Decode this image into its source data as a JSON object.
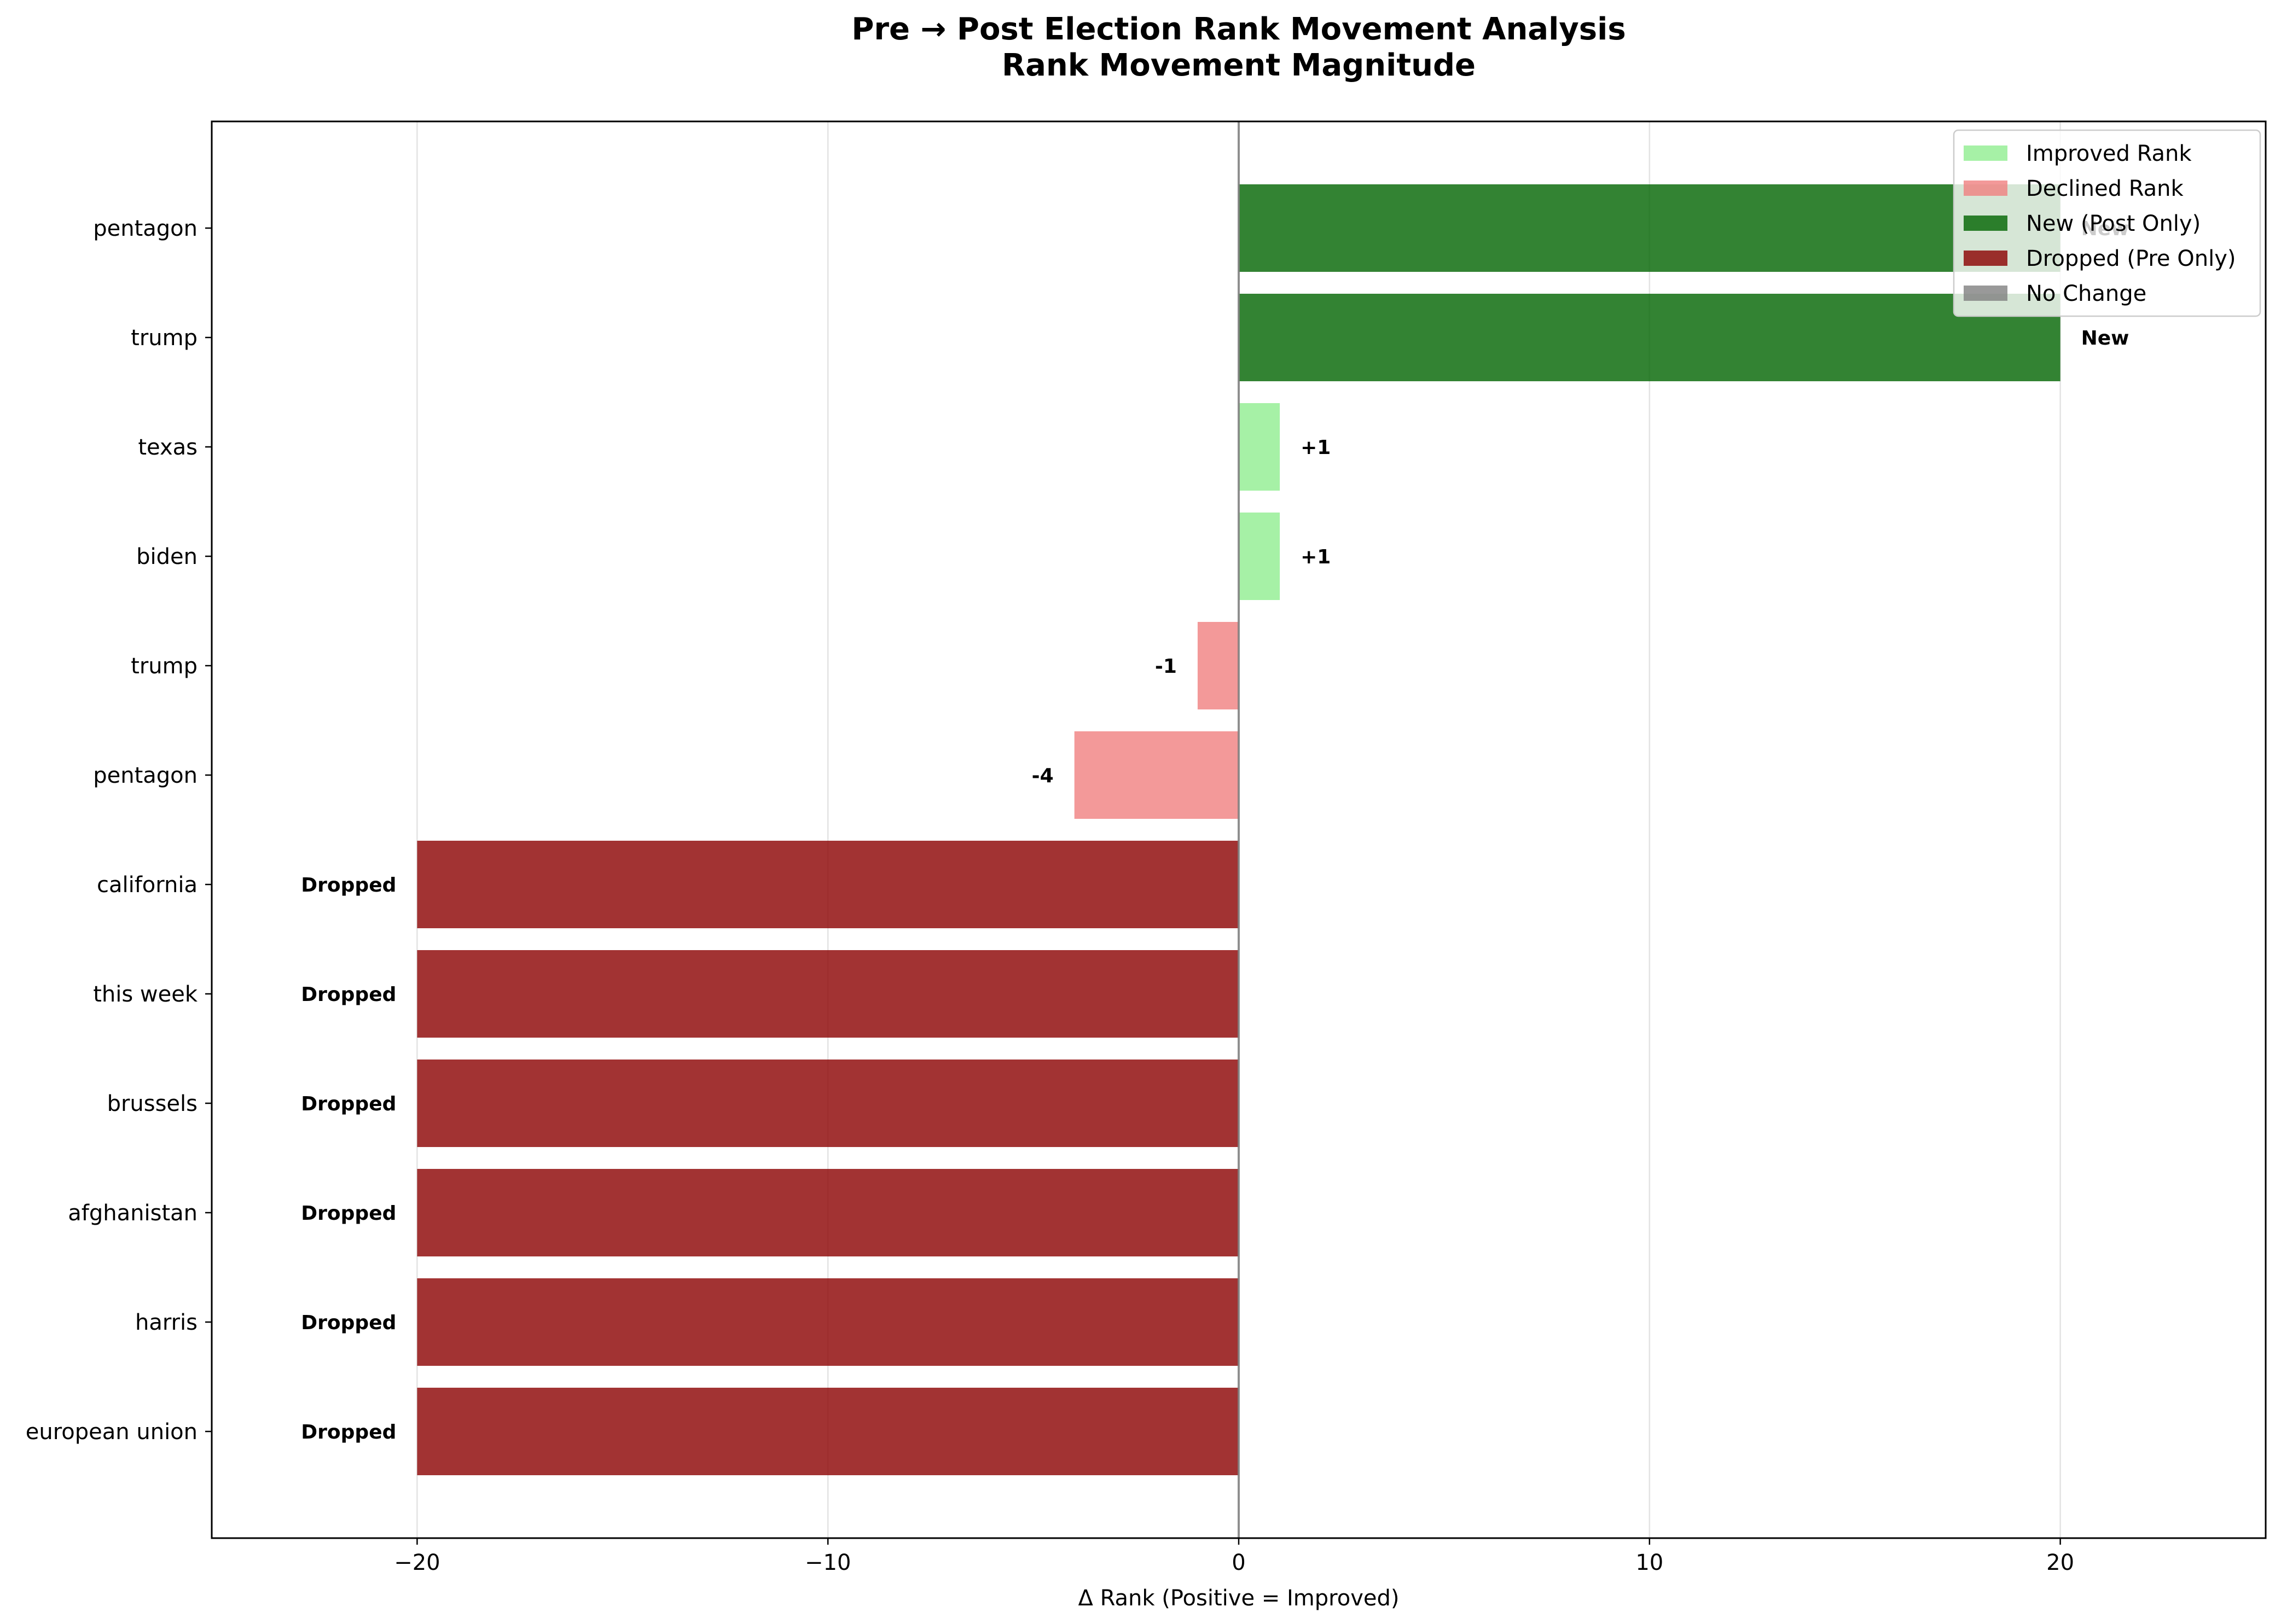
{
  "chart_data": {
    "type": "bar",
    "orientation": "horizontal",
    "title": "Pre → Post Election Rank Movement Analysis",
    "subtitle": "Rank Movement Magnitude",
    "xlabel": "Δ Rank (Positive = Improved)",
    "ylabel": "",
    "xlim": [
      -25,
      25
    ],
    "xticks": [
      -20,
      -10,
      0,
      10,
      20
    ],
    "xtick_labels": [
      "−20",
      "−10",
      "0",
      "10",
      "20"
    ],
    "grid": "vertical",
    "categories": [
      "pentagon",
      "trump",
      "texas",
      "biden",
      "trump",
      "pentagon",
      "california",
      "this week",
      "brussels",
      "afghanistan",
      "harris",
      "european union"
    ],
    "values": [
      20,
      20,
      1,
      1,
      -1,
      -4,
      -20,
      -20,
      -20,
      -20,
      -20,
      -20
    ],
    "bar_labels": [
      "New",
      "New",
      "+1",
      "+1",
      "-1",
      "-4",
      "Dropped",
      "Dropped",
      "Dropped",
      "Dropped",
      "Dropped",
      "Dropped"
    ],
    "statuses": [
      "new",
      "new",
      "improved",
      "improved",
      "declined",
      "declined",
      "dropped",
      "dropped",
      "dropped",
      "dropped",
      "dropped",
      "dropped"
    ],
    "colors": {
      "improved": "#90ee90",
      "declined": "#f08080",
      "new": "#006400",
      "dropped": "#8b0000",
      "nochange": "#808080"
    },
    "legend": {
      "position": "top-right",
      "entries": [
        {
          "label": "Improved Rank",
          "status": "improved"
        },
        {
          "label": "Declined Rank",
          "status": "declined"
        },
        {
          "label": "New (Post Only)",
          "status": "new"
        },
        {
          "label": "Dropped (Pre Only)",
          "status": "dropped"
        },
        {
          "label": "No Change",
          "status": "nochange"
        }
      ]
    }
  }
}
